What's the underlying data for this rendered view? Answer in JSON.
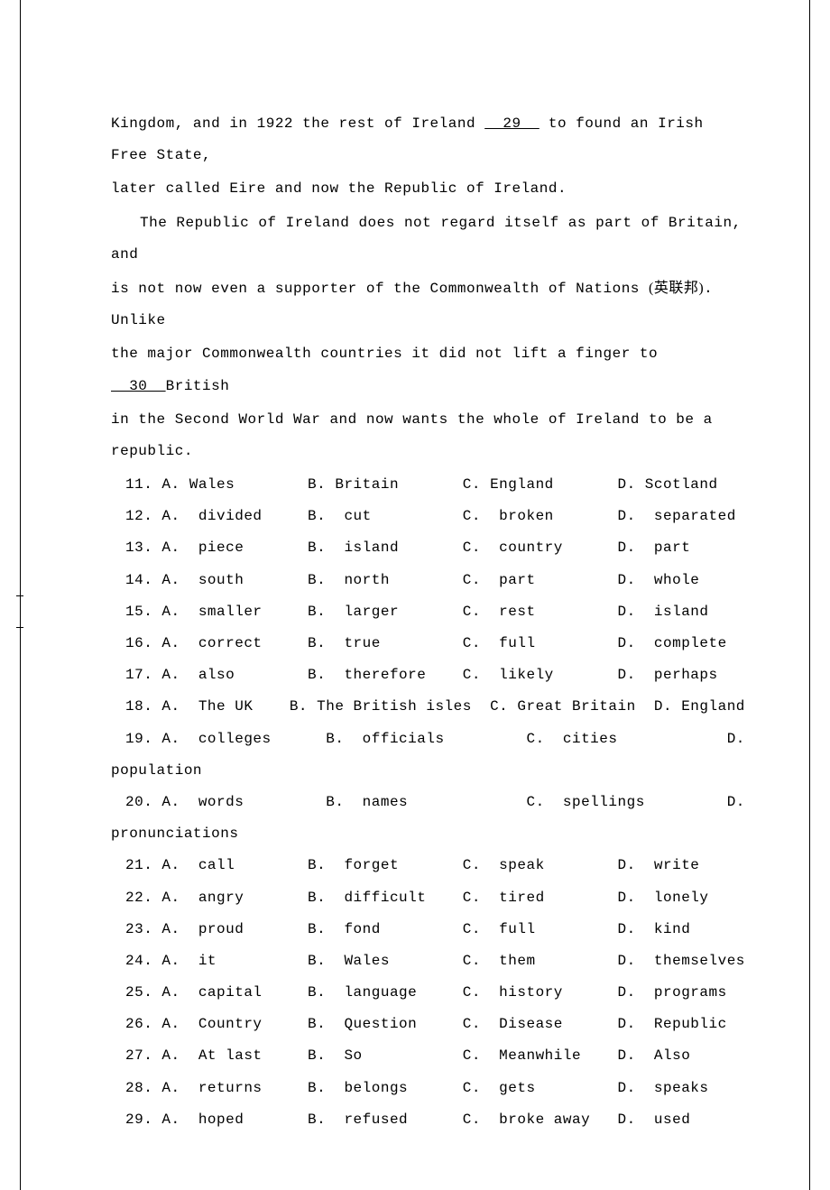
{
  "passage": {
    "p1a": "Kingdom, and in 1922 the rest of Ireland ",
    "blank29": "  29  ",
    "p1b": " to found an Irish Free State,",
    "p1c": "later called Eire and now the Republic of Ireland.",
    "p2a": "The Republic of Ireland does not regard itself as part of Britain, and",
    "p2b": "is not now even a supporter of the Commonwealth of Nations (英联邦). Unlike",
    "p2c": "the major Commonwealth countries it did not lift a finger to",
    "blank30": "  30  ",
    "p2d": "British",
    "p2e": "in the Second World War and now wants the whole of Ireland to be a republic."
  },
  "questions": [
    {
      "n": "11.",
      "a": "A. Wales",
      "b": "B. Britain",
      "c": "C. England",
      "d": "D. Scotland"
    },
    {
      "n": "12.",
      "a": "A.  divided",
      "b": "B.  cut",
      "c": "C.  broken",
      "d": "D.  separated"
    },
    {
      "n": "13.",
      "a": "A.  piece",
      "b": "B.  island",
      "c": "C.  country",
      "d": "D.  part"
    },
    {
      "n": "14.",
      "a": "A.  south",
      "b": "B.  north",
      "c": "C.  part",
      "d": "D.  whole"
    },
    {
      "n": "15.",
      "a": "A.  smaller",
      "b": "B.  larger",
      "c": "C.  rest",
      "d": "D.  island"
    },
    {
      "n": "16.",
      "a": "A.  correct",
      "b": "B.  true",
      "c": "C.  full",
      "d": "D.  complete"
    },
    {
      "n": "17.",
      "a": "A.  also",
      "b": "B.  therefore",
      "c": "C.  likely",
      "d": "D.  perhaps"
    },
    {
      "n": "18.",
      "a": "A.  The UK",
      "b": "B. The British isles",
      "c": "C. Great Britain",
      "d": "D. England"
    },
    {
      "n": "19.",
      "a": "A.  colleges",
      "b": "B.  officials",
      "c": "C.  cities",
      "d": "D.  "
    },
    {
      "wrap": "population"
    },
    {
      "n": "20.",
      "a": "A.  words",
      "b": "B.  names",
      "c": "C.  spellings",
      "d": "D.  "
    },
    {
      "wrap": "pronunciations"
    },
    {
      "n": "21.",
      "a": "A.  call",
      "b": "B.  forget",
      "c": "C.  speak",
      "d": "D.  write"
    },
    {
      "n": "22.",
      "a": "A.  angry",
      "b": "B.  difficult",
      "c": "C.  tired",
      "d": "D.  lonely"
    },
    {
      "n": "23.",
      "a": "A.  proud",
      "b": "B.  fond",
      "c": "C.  full",
      "d": "D.  kind"
    },
    {
      "n": "24.",
      "a": "A.  it",
      "b": "B.  Wales",
      "c": "C.  them",
      "d": "D.  themselves"
    },
    {
      "n": "25.",
      "a": "A.  capital",
      "b": "B.  language",
      "c": "C.  history",
      "d": "D.  programs"
    },
    {
      "n": "26.",
      "a": "A.  Country",
      "b": "B.  Question",
      "c": "C.  Disease",
      "d": "D.  Republic"
    },
    {
      "n": "27.",
      "a": "A.  At last",
      "b": "B.  So",
      "c": "C.  Meanwhile",
      "d": "D.  Also"
    },
    {
      "n": "28.",
      "a": "A.  returns",
      "b": "B.  belongs",
      "c": "C.  gets",
      "d": "D.  speaks"
    },
    {
      "n": "29.",
      "a": "A.  hoped",
      "b": "B.  refused",
      "c": "C.  broke away",
      "d": "D.  used"
    }
  ],
  "layout": {
    "col_n": 4,
    "col_a": 16,
    "col_b": 17,
    "col_c": 17,
    "col_d": 0,
    "q18_a": 14,
    "q18_b": 22,
    "q18_c": 18,
    "q19_a": 18,
    "q19_b": 22,
    "q19_c": 22,
    "q20_a": 18,
    "q20_b": 22,
    "q20_c": 22
  },
  "ticks": [
    660,
    695
  ]
}
